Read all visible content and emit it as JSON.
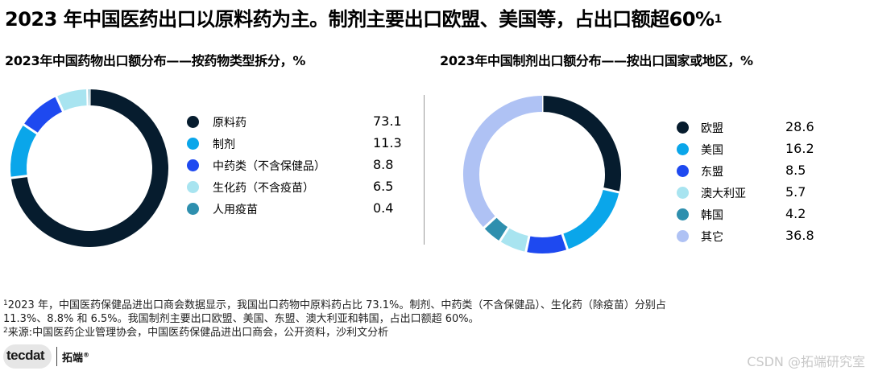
{
  "header": {
    "title": "2023 年中国医药出口以原料药为主。制剂主要出口欧盟、美国等，占出口额超60%",
    "title_sup": "1"
  },
  "chart_data": [
    {
      "type": "pie",
      "donut": true,
      "title": "2023年中国药物出口额分布——按药物类型拆分，%",
      "categories": [
        "原料药",
        "制剂",
        "中药类（不含保健品）",
        "生化药（不含疫苗）",
        "人用疫苗"
      ],
      "values": [
        73.1,
        11.3,
        8.8,
        6.5,
        0.4
      ],
      "value_labels": [
        "73.1",
        "11.3",
        "8.8",
        "6.5",
        "0.4"
      ],
      "colors": [
        "#061c2e",
        "#0aa6ea",
        "#1e49f0",
        "#a8e4f0",
        "#2e8fae"
      ],
      "legend": "right"
    },
    {
      "type": "pie",
      "donut": true,
      "title": "2023年中国制剂出口额分布——按出口国家或地区，%",
      "categories": [
        "欧盟",
        "美国",
        "东盟",
        "澳大利亚",
        "韩国",
        "其它"
      ],
      "values": [
        28.6,
        16.2,
        8.5,
        5.7,
        4.2,
        36.8
      ],
      "value_labels": [
        "28.6",
        "16.2",
        "8.5",
        "5.7",
        "4.2",
        "36.8"
      ],
      "colors": [
        "#061c2e",
        "#0aa6ea",
        "#1e49f0",
        "#a8e4f0",
        "#2e8fae",
        "#afc2f4"
      ],
      "legend": "right"
    }
  ],
  "footnotes": {
    "fn1_sup": "1",
    "fn1_line1": "2023 年，中国医药保健品进出口商会数据显示，我国出口药物中原料药占比 73.1%。制剂、中药类（不含保健品）、生化药（除疫苗）分别占",
    "fn1_line2": "11.3%、8.8% 和 6.5%。我国制剂主要出口欧盟、美国、东盟、澳大利亚和韩国，占出口额超 60%。",
    "fn2_sup": "2",
    "fn2": "来源:中国医药企业管理协会，中国医药保健品进出口商会，公开资料，沙利文分析"
  },
  "logo": {
    "mark_text": "tecdat",
    "brand": "拓端",
    "brand_sup": "®"
  },
  "watermark": "CSDN @拓端研究室"
}
